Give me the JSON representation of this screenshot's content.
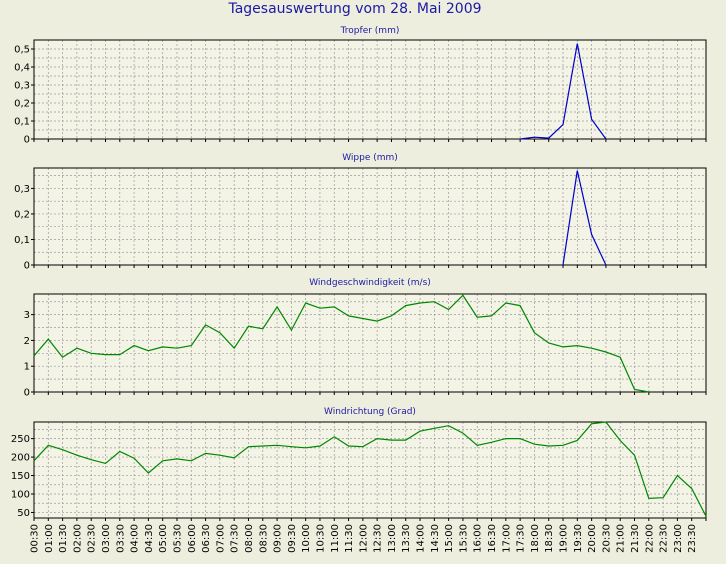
{
  "title": "Tagesauswertung vom 28. Mai 2009",
  "colors": {
    "blue": "#0000cc",
    "green": "#008800",
    "grid": "#9a9a9a",
    "plot_bg": "#f3f3e6"
  },
  "x_labels": [
    "00:30",
    "01:00",
    "01:30",
    "02:00",
    "02:30",
    "03:00",
    "03:30",
    "04:00",
    "04:30",
    "05:00",
    "05:30",
    "06:00",
    "06:30",
    "07:00",
    "07:30",
    "08:00",
    "08:30",
    "09:00",
    "09:30",
    "10:00",
    "10:30",
    "11:00",
    "11:30",
    "12:00",
    "12:30",
    "13:00",
    "13:30",
    "14:00",
    "14:30",
    "15:00",
    "15:30",
    "16:00",
    "16:30",
    "17:00",
    "17:30",
    "18:00",
    "18:30",
    "19:00",
    "19:30",
    "20:00",
    "20:30",
    "21:00",
    "21:30",
    "22:00",
    "22:30",
    "23:00",
    "23:30"
  ],
  "chart_data": [
    {
      "type": "line",
      "title": "Tropfer (mm)",
      "xlabel": "",
      "ylabel": "",
      "ylim": [
        0,
        0.55
      ],
      "yticks": [
        0,
        0.1,
        0.2,
        0.3,
        0.4,
        0.5
      ],
      "ytick_labels": [
        "0",
        "0,1",
        "0,2",
        "0,3",
        "0,4",
        "0,5"
      ],
      "color": "#0000cc",
      "series": [
        {
          "values": [
            0,
            0,
            0,
            0,
            0,
            0,
            0,
            0,
            0,
            0,
            0,
            0,
            0,
            0,
            0,
            0,
            0,
            0,
            0,
            0,
            0,
            0,
            0,
            0,
            0,
            0,
            0,
            0,
            0,
            0,
            0,
            0,
            0,
            0,
            0,
            0.01,
            0.005,
            0.08,
            0.53,
            0.11,
            0,
            0,
            0,
            0,
            0,
            0,
            0,
            0
          ]
        }
      ]
    },
    {
      "type": "line",
      "title": "Wippe (mm)",
      "xlabel": "",
      "ylabel": "",
      "ylim": [
        0,
        0.38
      ],
      "yticks": [
        0,
        0.1,
        0.2,
        0.3
      ],
      "ytick_labels": [
        "0",
        "0,1",
        "0,2",
        "0,3"
      ],
      "color": "#0000cc",
      "series": [
        {
          "values": [
            0,
            0,
            0,
            0,
            0,
            0,
            0,
            0,
            0,
            0,
            0,
            0,
            0,
            0,
            0,
            0,
            0,
            0,
            0,
            0,
            0,
            0,
            0,
            0,
            0,
            0,
            0,
            0,
            0,
            0,
            0,
            0,
            0,
            0,
            0,
            0,
            0,
            0,
            0.37,
            0.12,
            0,
            0,
            0,
            0,
            0,
            0,
            0,
            0
          ]
        }
      ]
    },
    {
      "type": "line",
      "title": "Windgeschwindigkeit (m/s)",
      "xlabel": "",
      "ylabel": "",
      "ylim": [
        0,
        3.8
      ],
      "yticks": [
        0,
        1,
        2,
        3
      ],
      "ytick_labels": [
        "0",
        "1",
        "2",
        "3"
      ],
      "color": "#008800",
      "series": [
        {
          "values": [
            1.4,
            2.05,
            1.35,
            1.7,
            1.5,
            1.45,
            1.45,
            1.8,
            1.6,
            1.75,
            1.7,
            1.8,
            2.6,
            2.3,
            1.7,
            2.55,
            2.45,
            3.3,
            2.4,
            3.45,
            3.25,
            3.3,
            2.95,
            2.85,
            2.75,
            2.95,
            3.35,
            3.45,
            3.5,
            3.2,
            3.75,
            2.9,
            2.95,
            3.45,
            3.35,
            2.3,
            1.9,
            1.75,
            1.8,
            1.7,
            1.55,
            1.35,
            0.1,
            0,
            0,
            0,
            0,
            0
          ]
        }
      ]
    },
    {
      "type": "line",
      "title": "Windrichtung (Grad)",
      "xlabel": "",
      "ylabel": "",
      "ylim": [
        35,
        295
      ],
      "yticks": [
        50,
        100,
        150,
        200,
        250
      ],
      "ytick_labels": [
        "50",
        "100",
        "150",
        "200",
        "250"
      ],
      "color": "#008800",
      "series": [
        {
          "values": [
            190,
            232,
            220,
            205,
            193,
            183,
            215,
            197,
            157,
            190,
            195,
            190,
            210,
            205,
            198,
            228,
            230,
            232,
            228,
            225,
            230,
            255,
            230,
            228,
            250,
            246,
            246,
            270,
            278,
            285,
            265,
            232,
            240,
            250,
            250,
            235,
            230,
            232,
            245,
            290,
            295,
            245,
            205,
            88,
            90,
            150,
            115,
            40
          ]
        }
      ]
    }
  ]
}
